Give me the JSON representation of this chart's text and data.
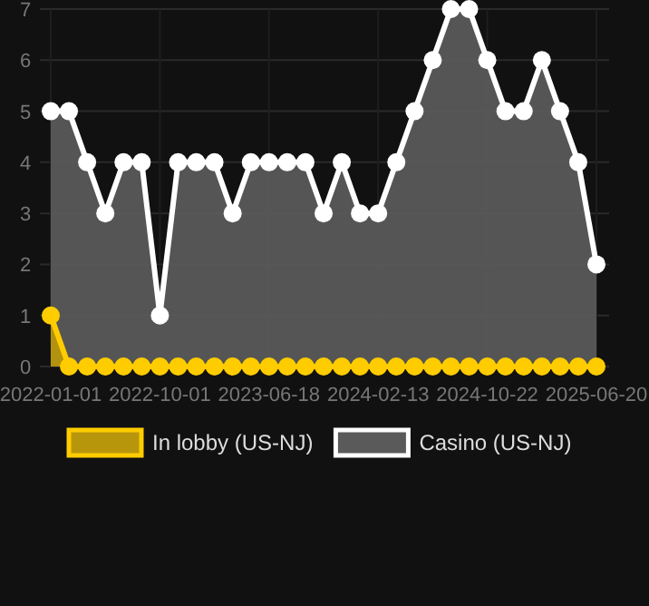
{
  "chart_data": {
    "type": "area",
    "categories": [
      "2022-01-01",
      null,
      null,
      null,
      null,
      null,
      "2022-10-01",
      null,
      null,
      null,
      null,
      null,
      "2023-06-18",
      null,
      null,
      null,
      null,
      null,
      "2024-02-13",
      null,
      null,
      null,
      null,
      null,
      "2024-10-22",
      null,
      null,
      null,
      null,
      null,
      "2025-06-20"
    ],
    "series": [
      {
        "name": "In lobby (US-NJ)",
        "color": "#ffcc00",
        "values": [
          1,
          0,
          0,
          0,
          0,
          0,
          0,
          0,
          0,
          0,
          0,
          0,
          0,
          0,
          0,
          0,
          0,
          0,
          0,
          0,
          0,
          0,
          0,
          0,
          0,
          0,
          0,
          0,
          0,
          0,
          0
        ]
      },
      {
        "name": "Casino (US-NJ)",
        "color": "#ffffff",
        "values": [
          5,
          5,
          4,
          3,
          4,
          4,
          1,
          4,
          4,
          4,
          3,
          4,
          4,
          4,
          4,
          3,
          4,
          3,
          3,
          4,
          5,
          6,
          7,
          7,
          6,
          5,
          5,
          6,
          5,
          4,
          2
        ]
      }
    ],
    "ylim": [
      0,
      7
    ],
    "yticks": [
      0,
      1,
      2,
      3,
      4,
      5,
      6,
      7
    ],
    "grid": true,
    "legend": "bottom",
    "marker": "circle",
    "line_style": "solid"
  }
}
